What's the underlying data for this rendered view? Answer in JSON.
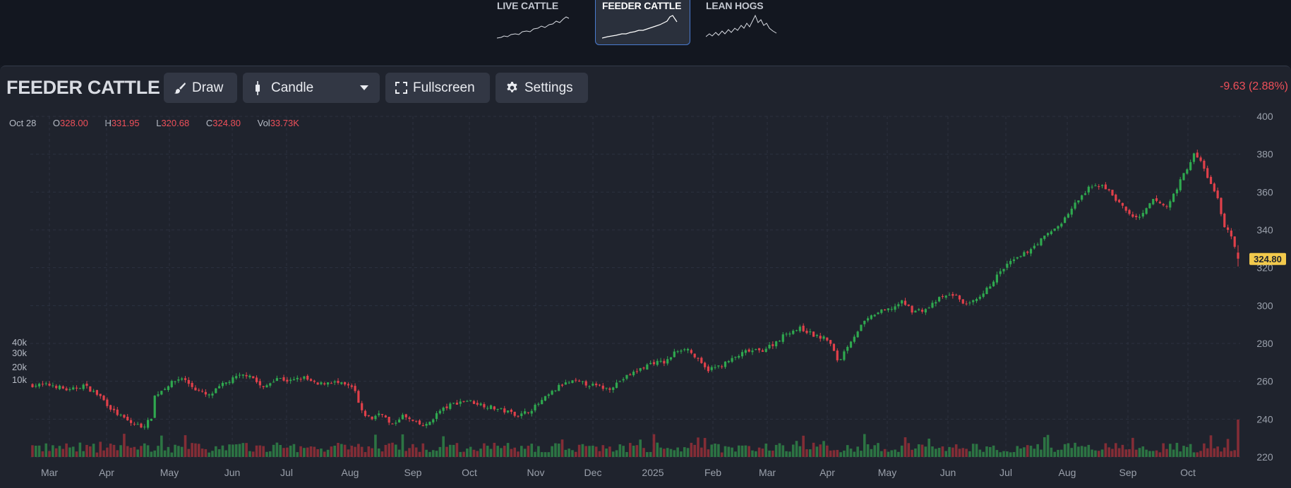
{
  "tabs": [
    {
      "label": "LIVE CATTLE",
      "active": false
    },
    {
      "label": "FEEDER CATTLE",
      "active": true
    },
    {
      "label": "LEAN HOGS",
      "active": false
    }
  ],
  "toolbar": {
    "title": "FEEDER CATTLE",
    "draw_label": "Draw",
    "chart_type_label": "Candle",
    "fullscreen_label": "Fullscreen",
    "settings_label": "Settings",
    "change_text": "-9.63 (2.88%)"
  },
  "ohlc": {
    "date": "Oct 28",
    "o_label": "O",
    "o": "328.00",
    "h_label": "H",
    "h": "331.95",
    "l_label": "L",
    "l": "320.68",
    "c_label": "C",
    "c": "324.80",
    "vol_label": "Vol",
    "vol": "33.73K"
  },
  "colors": {
    "up": "#2fa84f",
    "down": "#e0404a",
    "price_tag": "#f2c94c"
  },
  "icons": [
    "brush-icon",
    "candle-icon",
    "chevron-down-icon",
    "fullscreen-icon",
    "gear-icon"
  ],
  "chart_data": {
    "type": "candlestick",
    "price_axis": {
      "ticks": [
        220,
        240,
        260,
        280,
        300,
        320,
        340,
        360,
        380,
        400
      ],
      "range": [
        220,
        400
      ]
    },
    "volume_axis": {
      "tick_labels": [
        "10k",
        "20k",
        "30k",
        "40k"
      ],
      "ticks": [
        10000,
        20000,
        30000,
        40000
      ]
    },
    "x_axis_labels": [
      "Mar",
      "Apr",
      "May",
      "Jun",
      "Jul",
      "Aug",
      "Sep",
      "Oct",
      "Nov",
      "Dec",
      "2025",
      "Feb",
      "Mar",
      "Apr",
      "May",
      "Jun",
      "Jul",
      "Aug",
      "Sep",
      "Oct"
    ],
    "last_price_label": "324.80",
    "close_path": [
      [
        0,
        258
      ],
      [
        12,
        258
      ],
      [
        22,
        255
      ],
      [
        30,
        258
      ],
      [
        40,
        252
      ],
      [
        48,
        244
      ],
      [
        58,
        238
      ],
      [
        65,
        236
      ],
      [
        70,
        240
      ],
      [
        72,
        252
      ],
      [
        80,
        258
      ],
      [
        88,
        262
      ],
      [
        96,
        256
      ],
      [
        104,
        252
      ],
      [
        112,
        258
      ],
      [
        120,
        262
      ],
      [
        128,
        264
      ],
      [
        136,
        256
      ],
      [
        144,
        262
      ],
      [
        152,
        260
      ],
      [
        160,
        262
      ],
      [
        168,
        258
      ],
      [
        176,
        260
      ],
      [
        184,
        258
      ],
      [
        190,
        256
      ],
      [
        194,
        244
      ],
      [
        200,
        240
      ],
      [
        206,
        244
      ],
      [
        212,
        236
      ],
      [
        218,
        242
      ],
      [
        226,
        238
      ],
      [
        232,
        236
      ],
      [
        240,
        244
      ],
      [
        248,
        248
      ],
      [
        256,
        250
      ],
      [
        264,
        248
      ],
      [
        272,
        246
      ],
      [
        280,
        244
      ],
      [
        288,
        242
      ],
      [
        296,
        246
      ],
      [
        304,
        252
      ],
      [
        312,
        258
      ],
      [
        320,
        260
      ],
      [
        330,
        258
      ],
      [
        340,
        256
      ],
      [
        350,
        262
      ],
      [
        358,
        266
      ],
      [
        366,
        270
      ],
      [
        374,
        270
      ],
      [
        380,
        276
      ],
      [
        386,
        278
      ],
      [
        392,
        272
      ],
      [
        398,
        266
      ],
      [
        406,
        268
      ],
      [
        414,
        272
      ],
      [
        422,
        276
      ],
      [
        430,
        276
      ],
      [
        438,
        280
      ],
      [
        446,
        286
      ],
      [
        454,
        288
      ],
      [
        462,
        284
      ],
      [
        470,
        282
      ],
      [
        476,
        270
      ],
      [
        482,
        280
      ],
      [
        490,
        290
      ],
      [
        498,
        296
      ],
      [
        506,
        298
      ],
      [
        514,
        302
      ],
      [
        520,
        297
      ],
      [
        528,
        298
      ],
      [
        536,
        304
      ],
      [
        544,
        306
      ],
      [
        552,
        300
      ],
      [
        560,
        304
      ],
      [
        568,
        314
      ],
      [
        576,
        322
      ],
      [
        584,
        326
      ],
      [
        592,
        332
      ],
      [
        600,
        338
      ],
      [
        608,
        344
      ],
      [
        616,
        354
      ],
      [
        624,
        362
      ],
      [
        632,
        364
      ],
      [
        640,
        356
      ],
      [
        648,
        348
      ],
      [
        654,
        346
      ],
      [
        662,
        356
      ],
      [
        670,
        352
      ],
      [
        678,
        366
      ],
      [
        686,
        380
      ],
      [
        690,
        376
      ],
      [
        694,
        368
      ],
      [
        700,
        356
      ],
      [
        704,
        342
      ],
      [
        708,
        336
      ],
      [
        712,
        324.8
      ]
    ]
  }
}
